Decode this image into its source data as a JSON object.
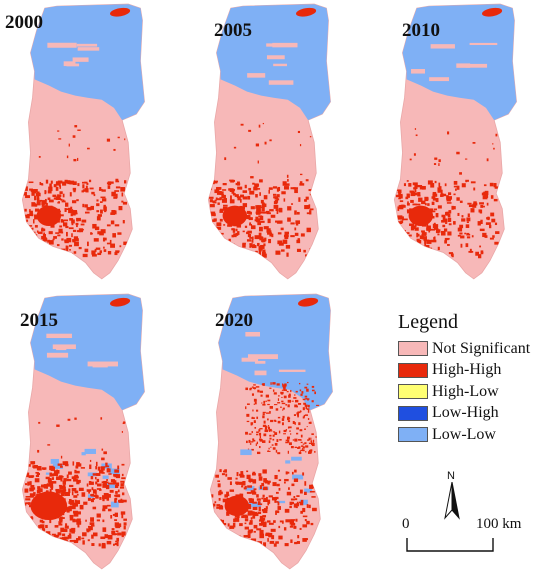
{
  "maps": [
    {
      "year": "2000",
      "high_high_extent": "medium"
    },
    {
      "year": "2005",
      "high_high_extent": "medium"
    },
    {
      "year": "2010",
      "high_high_extent": "medium"
    },
    {
      "year": "2015",
      "high_high_extent": "large"
    },
    {
      "year": "2020",
      "high_high_extent": "scattered"
    }
  ],
  "legend": {
    "title": "Legend",
    "items": [
      {
        "label": "Not Significant",
        "color": "#f7b8b8"
      },
      {
        "label": "High-High",
        "color": "#e8290b"
      },
      {
        "label": "High-Low",
        "color": "#ffff73"
      },
      {
        "label": "Low-High",
        "color": "#1f4fe0"
      },
      {
        "label": "Low-Low",
        "color": "#7fb0f5"
      }
    ]
  },
  "north_arrow": {
    "label": "N"
  },
  "scale_bar": {
    "start_label": "0",
    "end_label": "100 km"
  }
}
